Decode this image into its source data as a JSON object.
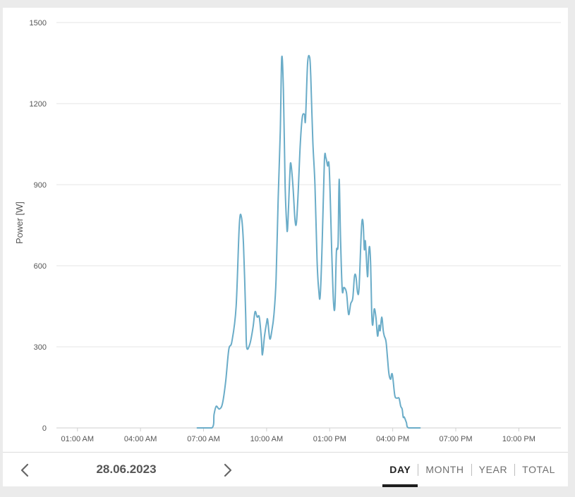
{
  "chart_data": {
    "type": "line",
    "ylabel": "Power [W]",
    "ylim": [
      0,
      1500
    ],
    "y_ticks": [
      0,
      300,
      600,
      900,
      1200,
      1500
    ],
    "x_range_hours": [
      0,
      24
    ],
    "x_ticks": [
      {
        "h": 1,
        "label": "01:00 AM"
      },
      {
        "h": 4,
        "label": "04:00 AM"
      },
      {
        "h": 7,
        "label": "07:00 AM"
      },
      {
        "h": 10,
        "label": "10:00 AM"
      },
      {
        "h": 13,
        "label": "01:00 PM"
      },
      {
        "h": 16,
        "label": "04:00 PM"
      },
      {
        "h": 19,
        "label": "07:00 PM"
      },
      {
        "h": 22,
        "label": "10:00 PM"
      }
    ],
    "grid": true,
    "color": "#6aacc8",
    "series": [
      {
        "name": "",
        "points": [
          [
            6.7,
            0
          ],
          [
            7.4,
            0
          ],
          [
            7.5,
            50
          ],
          [
            7.6,
            80
          ],
          [
            7.75,
            70
          ],
          [
            7.9,
            90
          ],
          [
            8.05,
            170
          ],
          [
            8.2,
            290
          ],
          [
            8.35,
            320
          ],
          [
            8.55,
            450
          ],
          [
            8.7,
            750
          ],
          [
            8.8,
            780
          ],
          [
            8.9,
            680
          ],
          [
            9.0,
            430
          ],
          [
            9.05,
            300
          ],
          [
            9.2,
            310
          ],
          [
            9.35,
            370
          ],
          [
            9.45,
            430
          ],
          [
            9.55,
            410
          ],
          [
            9.65,
            410
          ],
          [
            9.75,
            330
          ],
          [
            9.8,
            270
          ],
          [
            9.9,
            340
          ],
          [
            10.0,
            390
          ],
          [
            10.05,
            400
          ],
          [
            10.15,
            330
          ],
          [
            10.25,
            360
          ],
          [
            10.35,
            420
          ],
          [
            10.45,
            550
          ],
          [
            10.55,
            850
          ],
          [
            10.65,
            1100
          ],
          [
            10.72,
            1370
          ],
          [
            10.8,
            1250
          ],
          [
            10.88,
            900
          ],
          [
            10.95,
            760
          ],
          [
            11.0,
            740
          ],
          [
            11.1,
            930
          ],
          [
            11.15,
            980
          ],
          [
            11.25,
            900
          ],
          [
            11.35,
            770
          ],
          [
            11.42,
            760
          ],
          [
            11.5,
            870
          ],
          [
            11.6,
            1050
          ],
          [
            11.7,
            1150
          ],
          [
            11.8,
            1160
          ],
          [
            11.85,
            1140
          ],
          [
            11.95,
            1350
          ],
          [
            12.05,
            1370
          ],
          [
            12.1,
            1300
          ],
          [
            12.2,
            1060
          ],
          [
            12.3,
            900
          ],
          [
            12.4,
            620
          ],
          [
            12.48,
            510
          ],
          [
            12.55,
            490
          ],
          [
            12.65,
            700
          ],
          [
            12.75,
            990
          ],
          [
            12.82,
            1000
          ],
          [
            12.9,
            970
          ],
          [
            12.98,
            960
          ],
          [
            13.1,
            650
          ],
          [
            13.18,
            470
          ],
          [
            13.25,
            450
          ],
          [
            13.32,
            650
          ],
          [
            13.4,
            680
          ],
          [
            13.45,
            920
          ],
          [
            13.52,
            690
          ],
          [
            13.6,
            510
          ],
          [
            13.68,
            520
          ],
          [
            13.8,
            500
          ],
          [
            13.9,
            420
          ],
          [
            14.0,
            460
          ],
          [
            14.1,
            480
          ],
          [
            14.18,
            560
          ],
          [
            14.25,
            560
          ],
          [
            14.33,
            500
          ],
          [
            14.4,
            520
          ],
          [
            14.5,
            720
          ],
          [
            14.55,
            770
          ],
          [
            14.6,
            750
          ],
          [
            14.65,
            660
          ],
          [
            14.7,
            690
          ],
          [
            14.8,
            560
          ],
          [
            14.85,
            640
          ],
          [
            14.9,
            670
          ],
          [
            14.95,
            600
          ],
          [
            15.0,
            430
          ],
          [
            15.05,
            380
          ],
          [
            15.12,
            440
          ],
          [
            15.2,
            410
          ],
          [
            15.28,
            340
          ],
          [
            15.35,
            380
          ],
          [
            15.4,
            360
          ],
          [
            15.48,
            410
          ],
          [
            15.55,
            360
          ],
          [
            15.6,
            340
          ],
          [
            15.68,
            320
          ],
          [
            15.75,
            260
          ],
          [
            15.82,
            200
          ],
          [
            15.9,
            180
          ],
          [
            15.95,
            200
          ],
          [
            16.0,
            190
          ],
          [
            16.1,
            120
          ],
          [
            16.2,
            110
          ],
          [
            16.3,
            110
          ],
          [
            16.38,
            80
          ],
          [
            16.45,
            70
          ],
          [
            16.5,
            40
          ],
          [
            16.55,
            40
          ],
          [
            16.65,
            20
          ],
          [
            16.75,
            0
          ],
          [
            17.3,
            0
          ]
        ]
      }
    ]
  },
  "footer": {
    "date": "28.06.2023",
    "tabs": [
      "DAY",
      "MONTH",
      "YEAR",
      "TOTAL"
    ],
    "active_tab": "DAY"
  }
}
